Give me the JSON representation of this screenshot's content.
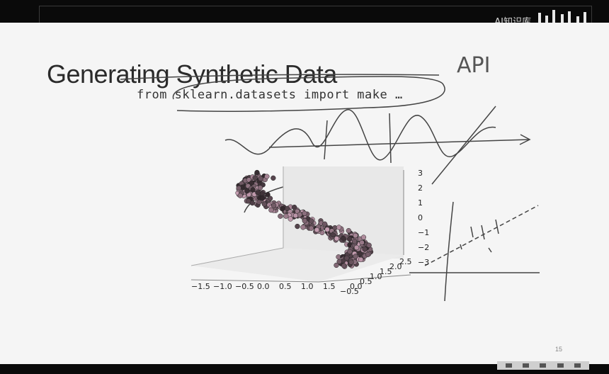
{
  "watermark": {
    "text": "AI知识库"
  },
  "slide": {
    "title": "Generating Synthetic Data",
    "code": "from sklearn.datasets import make …",
    "handwriting": "API",
    "page_number": "15"
  },
  "plot": {
    "x_ticks": [
      "−1.5",
      "−1.0",
      "−0.5",
      "0.0",
      "0.5",
      "1.0",
      "1.5"
    ],
    "y_ticks": [
      "−0.5",
      "0.0",
      "0.5",
      "1.0",
      "1.5",
      "2.0",
      "2.5"
    ],
    "z_ticks": [
      "3",
      "2",
      "1",
      "0",
      "−1",
      "−2",
      "−3"
    ]
  }
}
